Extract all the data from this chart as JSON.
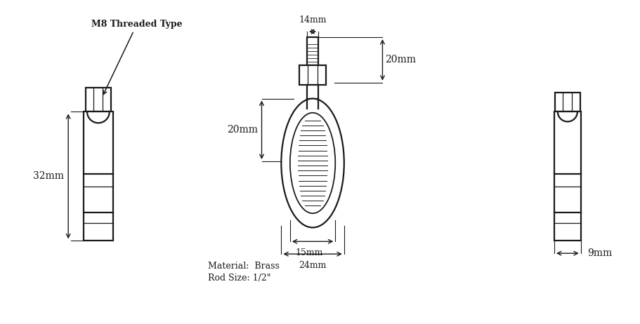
{
  "bg_color": "#ffffff",
  "line_color": "#1a1a1a",
  "dim_color": "#1a1a1a",
  "title_label": "M8 Threaded Type",
  "material_text": "Material:  Brass",
  "rod_size_text": "Rod Size: 1/2\"",
  "dim_14mm": "14mm",
  "dim_20mm_right": "20mm",
  "dim_20mm_left": "20mm",
  "dim_32mm": "32mm",
  "dim_15mm": "15mm",
  "dim_24mm": "24mm",
  "dim_9mm": "9mm",
  "lw": 1.6,
  "lw_thin": 0.9
}
